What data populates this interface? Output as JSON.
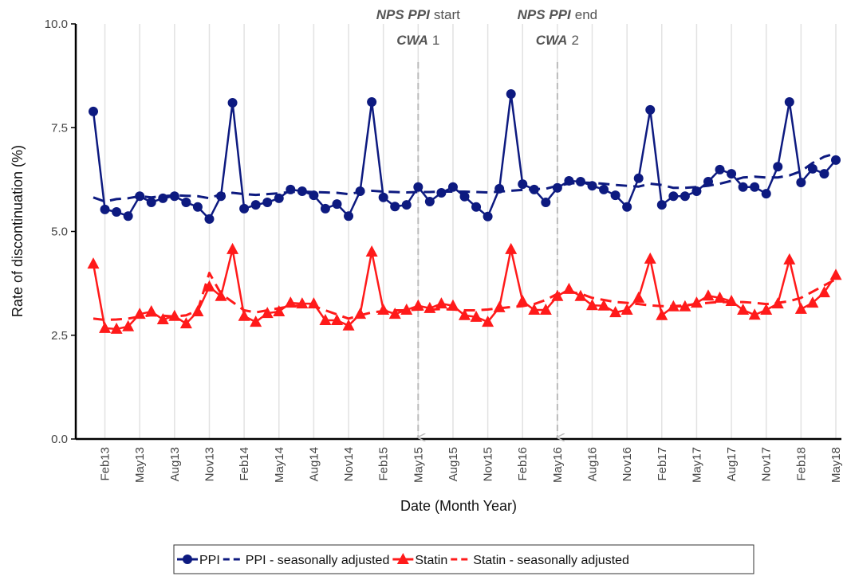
{
  "chart_data": {
    "type": "line",
    "y_label": "Rate of discontinuation (%)",
    "x_label": "Date (Month Year)",
    "categories": [
      null,
      "Feb13",
      null,
      null,
      "May13",
      null,
      null,
      "Aug13",
      null,
      null,
      "Nov13",
      null,
      null,
      "Feb14",
      null,
      null,
      "May14",
      null,
      null,
      "Aug14",
      null,
      null,
      "Nov14",
      null,
      null,
      "Feb15",
      null,
      null,
      "May15",
      null,
      null,
      "Aug15",
      null,
      null,
      "Nov15",
      null,
      null,
      "Feb16",
      null,
      null,
      "May16",
      null,
      null,
      "Aug16",
      null,
      null,
      "Nov16",
      null,
      null,
      "Feb17",
      null,
      null,
      "May17",
      null,
      null,
      "Aug17",
      null,
      null,
      "Nov17",
      null,
      null,
      "Feb18",
      null,
      null,
      "May18"
    ],
    "series": [
      {
        "name": "PPI",
        "color": "#0d1a80",
        "marker": "circle",
        "dashed": false,
        "values": [
          7.89,
          5.53,
          5.47,
          5.37,
          5.85,
          5.7,
          5.8,
          5.85,
          5.7,
          5.59,
          5.3,
          5.85,
          8.1,
          5.55,
          5.64,
          5.7,
          5.8,
          6.01,
          5.97,
          5.87,
          5.55,
          5.66,
          5.37,
          5.97,
          8.12,
          5.82,
          5.6,
          5.64,
          6.07,
          5.72,
          5.93,
          6.07,
          5.84,
          5.59,
          5.36,
          6.03,
          8.31,
          6.14,
          6.01,
          5.7,
          6.05,
          6.22,
          6.2,
          6.1,
          6.01,
          5.87,
          5.59,
          6.28,
          7.93,
          5.64,
          5.85,
          5.85,
          5.97,
          6.2,
          6.49,
          6.39,
          6.07,
          6.07,
          5.91,
          6.56,
          8.12,
          6.18,
          6.51,
          6.39,
          6.72
        ]
      },
      {
        "name": "PPI - seasonally adjusted",
        "color": "#0d1a80",
        "marker": null,
        "dashed": true,
        "values": [
          5.82,
          5.72,
          5.78,
          5.8,
          5.85,
          5.82,
          5.85,
          5.87,
          5.86,
          5.85,
          5.8,
          5.9,
          5.93,
          5.9,
          5.88,
          5.9,
          5.92,
          5.95,
          5.96,
          5.95,
          5.94,
          5.93,
          5.9,
          5.95,
          5.98,
          5.96,
          5.95,
          5.94,
          5.95,
          5.95,
          5.96,
          5.96,
          5.96,
          5.95,
          5.94,
          5.96,
          5.98,
          6.0,
          6.02,
          6.03,
          6.1,
          6.15,
          6.18,
          6.17,
          6.15,
          6.12,
          6.1,
          6.08,
          6.15,
          6.12,
          6.05,
          6.05,
          6.07,
          6.1,
          6.15,
          6.22,
          6.3,
          6.32,
          6.3,
          6.3,
          6.35,
          6.45,
          6.65,
          6.8,
          6.88
        ]
      },
      {
        "name": "Statin",
        "color": "#ff1a1a",
        "marker": "triangle",
        "dashed": false,
        "values": [
          4.22,
          2.67,
          2.65,
          2.71,
          3.01,
          3.07,
          2.88,
          2.96,
          2.78,
          3.07,
          3.67,
          3.44,
          4.57,
          2.96,
          2.82,
          3.03,
          3.07,
          3.28,
          3.26,
          3.26,
          2.86,
          2.86,
          2.73,
          3.01,
          4.51,
          3.11,
          3.01,
          3.11,
          3.21,
          3.15,
          3.26,
          3.21,
          2.98,
          2.94,
          2.82,
          3.17,
          4.57,
          3.32,
          3.11,
          3.11,
          3.44,
          3.61,
          3.44,
          3.22,
          3.21,
          3.05,
          3.11,
          3.4,
          4.34,
          2.98,
          3.19,
          3.19,
          3.28,
          3.45,
          3.4,
          3.32,
          3.11,
          2.99,
          3.11,
          3.26,
          4.32,
          3.13,
          3.28,
          3.53,
          3.95
        ]
      },
      {
        "name": "Statin - seasonally adjusted",
        "color": "#ff1a1a",
        "marker": null,
        "dashed": true,
        "values": [
          2.9,
          2.87,
          2.88,
          2.9,
          2.95,
          2.98,
          2.97,
          2.95,
          2.98,
          3.1,
          4.0,
          3.5,
          3.3,
          3.1,
          3.05,
          3.1,
          3.15,
          3.2,
          3.22,
          3.2,
          3.1,
          3.0,
          2.9,
          2.98,
          3.05,
          3.08,
          3.1,
          3.1,
          3.12,
          3.12,
          3.13,
          3.12,
          3.1,
          3.1,
          3.12,
          3.15,
          3.18,
          3.2,
          3.25,
          3.35,
          3.5,
          3.55,
          3.5,
          3.4,
          3.35,
          3.3,
          3.28,
          3.25,
          3.22,
          3.2,
          3.2,
          3.22,
          3.25,
          3.28,
          3.3,
          3.3,
          3.3,
          3.28,
          3.25,
          3.28,
          3.32,
          3.4,
          3.55,
          3.7,
          3.85
        ]
      }
    ],
    "ylim": [
      0,
      10
    ],
    "yticks": [
      {
        "value": 0,
        "label": "0.0"
      },
      {
        "value": 2.5,
        "label": "2.5"
      },
      {
        "value": 5,
        "label": "5.0"
      },
      {
        "value": 7.5,
        "label": "7.5"
      },
      {
        "value": 10,
        "label": "10.0"
      }
    ],
    "grid": true,
    "legend": "bottom",
    "annotations": [
      {
        "at": "May15",
        "italic": "NPS PPI",
        "text": "start",
        "italic2": "CWA",
        "text2": "1"
      },
      {
        "at": "May16",
        "italic": "NPS PPI",
        "text": "end",
        "italic2": "CWA",
        "text2": "2"
      }
    ]
  }
}
